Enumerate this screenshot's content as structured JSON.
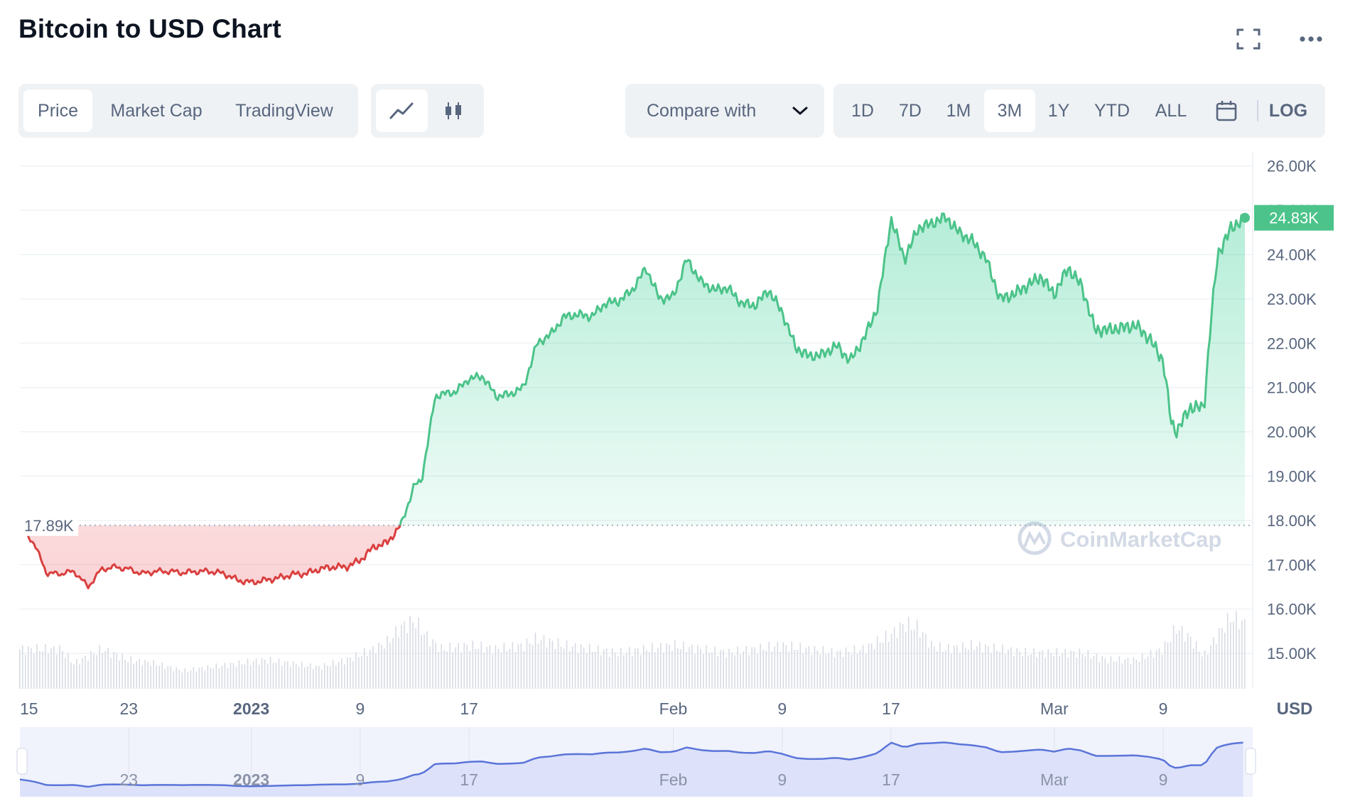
{
  "header": {
    "title": "Bitcoin to USD Chart",
    "fullscreen_icon": "fullscreen-icon",
    "more_icon": "more-dots-icon"
  },
  "metric_tabs": [
    {
      "label": "Price",
      "active": true
    },
    {
      "label": "Market Cap",
      "active": false
    },
    {
      "label": "TradingView",
      "active": false
    }
  ],
  "chart_style": {
    "line_icon": "line-chart-icon",
    "candle_icon": "candlestick-icon",
    "active": "line"
  },
  "compare": {
    "label": "Compare with",
    "icon": "chevron-down-icon"
  },
  "ranges": [
    {
      "label": "1D",
      "active": false
    },
    {
      "label": "7D",
      "active": false
    },
    {
      "label": "1M",
      "active": false
    },
    {
      "label": "3M",
      "active": true
    },
    {
      "label": "1Y",
      "active": false
    },
    {
      "label": "YTD",
      "active": false
    },
    {
      "label": "ALL",
      "active": false
    }
  ],
  "calendar_icon": "calendar-icon",
  "log_label": "LOG",
  "currency_label": "USD",
  "watermark": "CoinMarketCap",
  "colors": {
    "up": "#16c784",
    "up_line": "#4cc38a",
    "down": "#d9403f",
    "brush": "#5a74d8",
    "grid": "#eff2f5",
    "label_bg": "#4cc38a"
  },
  "chart_data": {
    "type": "area",
    "baseline_label": "17.89K",
    "baseline_value": 17.89,
    "current_label": "24.83K",
    "current_value": 24.83,
    "y_unit": "K USD",
    "ylim": [
      14.2,
      26.3
    ],
    "y_ticks": [
      "26.00K",
      "25.00K",
      "24.00K",
      "23.00K",
      "22.00K",
      "21.00K",
      "20.00K",
      "19.00K",
      "18.00K",
      "17.00K",
      "16.00K",
      "15.00K"
    ],
    "y_tick_values": [
      26,
      25,
      24,
      23,
      22,
      21,
      20,
      19,
      18,
      17,
      16,
      15
    ],
    "x_labels": [
      {
        "label": "15",
        "day": 0,
        "bold": false
      },
      {
        "label": "23",
        "day": 8,
        "bold": false
      },
      {
        "label": "2023",
        "day": 17,
        "bold": true
      },
      {
        "label": "9",
        "day": 25,
        "bold": false
      },
      {
        "label": "17",
        "day": 33,
        "bold": false
      },
      {
        "label": "Feb",
        "day": 48,
        "bold": false
      },
      {
        "label": "9",
        "day": 56,
        "bold": false
      },
      {
        "label": "17",
        "day": 64,
        "bold": false
      },
      {
        "label": "Mar",
        "day": 76,
        "bold": false
      },
      {
        "label": "9",
        "day": 84,
        "bold": false
      }
    ],
    "brush_labels": [
      {
        "label": "23",
        "day": 8,
        "bold": false
      },
      {
        "label": "2023",
        "day": 17,
        "bold": true
      },
      {
        "label": "9",
        "day": 25,
        "bold": false
      },
      {
        "label": "17",
        "day": 33,
        "bold": false
      },
      {
        "label": "Feb",
        "day": 48,
        "bold": false
      },
      {
        "label": "9",
        "day": 56,
        "bold": false
      },
      {
        "label": "17",
        "day": 64,
        "bold": false
      },
      {
        "label": "Mar",
        "day": 76,
        "bold": false
      },
      {
        "label": "9",
        "day": 84,
        "bold": false
      }
    ],
    "day_span": 90,
    "price_points": [
      [
        0,
        17.89
      ],
      [
        1,
        17.5
      ],
      [
        2,
        16.8
      ],
      [
        3,
        16.8
      ],
      [
        4,
        16.85
      ],
      [
        5,
        16.5
      ],
      [
        6,
        16.9
      ],
      [
        7,
        16.95
      ],
      [
        8,
        16.9
      ],
      [
        9,
        16.8
      ],
      [
        10,
        16.85
      ],
      [
        11,
        16.85
      ],
      [
        12,
        16.82
      ],
      [
        13,
        16.85
      ],
      [
        14,
        16.85
      ],
      [
        15,
        16.8
      ],
      [
        16,
        16.65
      ],
      [
        17,
        16.6
      ],
      [
        18,
        16.65
      ],
      [
        19,
        16.7
      ],
      [
        20,
        16.78
      ],
      [
        21,
        16.8
      ],
      [
        22,
        16.9
      ],
      [
        23,
        16.95
      ],
      [
        24,
        16.95
      ],
      [
        25,
        17.1
      ],
      [
        26,
        17.4
      ],
      [
        27,
        17.5
      ],
      [
        28,
        17.9
      ],
      [
        29,
        18.8
      ],
      [
        29.5,
        18.9
      ],
      [
        30,
        19.8
      ],
      [
        30.5,
        20.8
      ],
      [
        31,
        20.85
      ],
      [
        32,
        20.9
      ],
      [
        33,
        21.2
      ],
      [
        34,
        21.25
      ],
      [
        35,
        20.8
      ],
      [
        36,
        20.85
      ],
      [
        37,
        21.0
      ],
      [
        38,
        22.0
      ],
      [
        39,
        22.2
      ],
      [
        40,
        22.6
      ],
      [
        41,
        22.65
      ],
      [
        42,
        22.6
      ],
      [
        43,
        22.9
      ],
      [
        44,
        22.95
      ],
      [
        45,
        23.2
      ],
      [
        46,
        23.7
      ],
      [
        47,
        23.0
      ],
      [
        48,
        23.05
      ],
      [
        49,
        23.9
      ],
      [
        50,
        23.4
      ],
      [
        51,
        23.2
      ],
      [
        52,
        23.25
      ],
      [
        53,
        22.9
      ],
      [
        54,
        22.85
      ],
      [
        55,
        23.2
      ],
      [
        56,
        22.7
      ],
      [
        57,
        21.9
      ],
      [
        58,
        21.7
      ],
      [
        59,
        21.75
      ],
      [
        60,
        21.95
      ],
      [
        61,
        21.6
      ],
      [
        62,
        22.1
      ],
      [
        63,
        22.8
      ],
      [
        64,
        24.8
      ],
      [
        65,
        23.9
      ],
      [
        66,
        24.6
      ],
      [
        67,
        24.7
      ],
      [
        68,
        24.85
      ],
      [
        69,
        24.5
      ],
      [
        70,
        24.3
      ],
      [
        71,
        23.9
      ],
      [
        72,
        23.0
      ],
      [
        73,
        23.1
      ],
      [
        74,
        23.3
      ],
      [
        75,
        23.5
      ],
      [
        76,
        23.1
      ],
      [
        77,
        23.7
      ],
      [
        78,
        23.3
      ],
      [
        79,
        22.3
      ],
      [
        80,
        22.3
      ],
      [
        81,
        22.35
      ],
      [
        82,
        22.4
      ],
      [
        83,
        22.1
      ],
      [
        84,
        21.6
      ],
      [
        84.6,
        20.2
      ],
      [
        85,
        20.0
      ],
      [
        85.5,
        20.3
      ],
      [
        86,
        20.55
      ],
      [
        87,
        20.55
      ],
      [
        87.5,
        22.5
      ],
      [
        88,
        24.0
      ],
      [
        88.5,
        24.3
      ],
      [
        89,
        24.6
      ],
      [
        90,
        24.83
      ]
    ],
    "volume_envelope": [
      [
        0,
        0.55
      ],
      [
        3,
        0.55
      ],
      [
        4,
        0.35
      ],
      [
        6,
        0.55
      ],
      [
        8,
        0.4
      ],
      [
        10,
        0.35
      ],
      [
        12,
        0.25
      ],
      [
        14,
        0.3
      ],
      [
        16,
        0.35
      ],
      [
        18,
        0.4
      ],
      [
        20,
        0.35
      ],
      [
        22,
        0.3
      ],
      [
        24,
        0.4
      ],
      [
        26,
        0.55
      ],
      [
        27,
        0.65
      ],
      [
        28,
        0.85
      ],
      [
        29,
        0.95
      ],
      [
        30,
        0.7
      ],
      [
        31,
        0.55
      ],
      [
        33,
        0.6
      ],
      [
        35,
        0.55
      ],
      [
        37,
        0.6
      ],
      [
        38,
        0.7
      ],
      [
        40,
        0.6
      ],
      [
        42,
        0.55
      ],
      [
        44,
        0.5
      ],
      [
        46,
        0.55
      ],
      [
        48,
        0.6
      ],
      [
        50,
        0.55
      ],
      [
        52,
        0.5
      ],
      [
        54,
        0.55
      ],
      [
        56,
        0.6
      ],
      [
        58,
        0.55
      ],
      [
        60,
        0.5
      ],
      [
        62,
        0.55
      ],
      [
        64,
        0.75
      ],
      [
        65,
        0.9
      ],
      [
        66,
        0.85
      ],
      [
        67,
        0.6
      ],
      [
        68,
        0.55
      ],
      [
        70,
        0.6
      ],
      [
        72,
        0.55
      ],
      [
        74,
        0.5
      ],
      [
        76,
        0.5
      ],
      [
        78,
        0.5
      ],
      [
        80,
        0.4
      ],
      [
        82,
        0.4
      ],
      [
        84,
        0.55
      ],
      [
        85,
        0.85
      ],
      [
        86,
        0.7
      ],
      [
        87,
        0.45
      ],
      [
        88,
        0.75
      ],
      [
        89,
        1.0
      ],
      [
        90,
        0.9
      ]
    ]
  }
}
